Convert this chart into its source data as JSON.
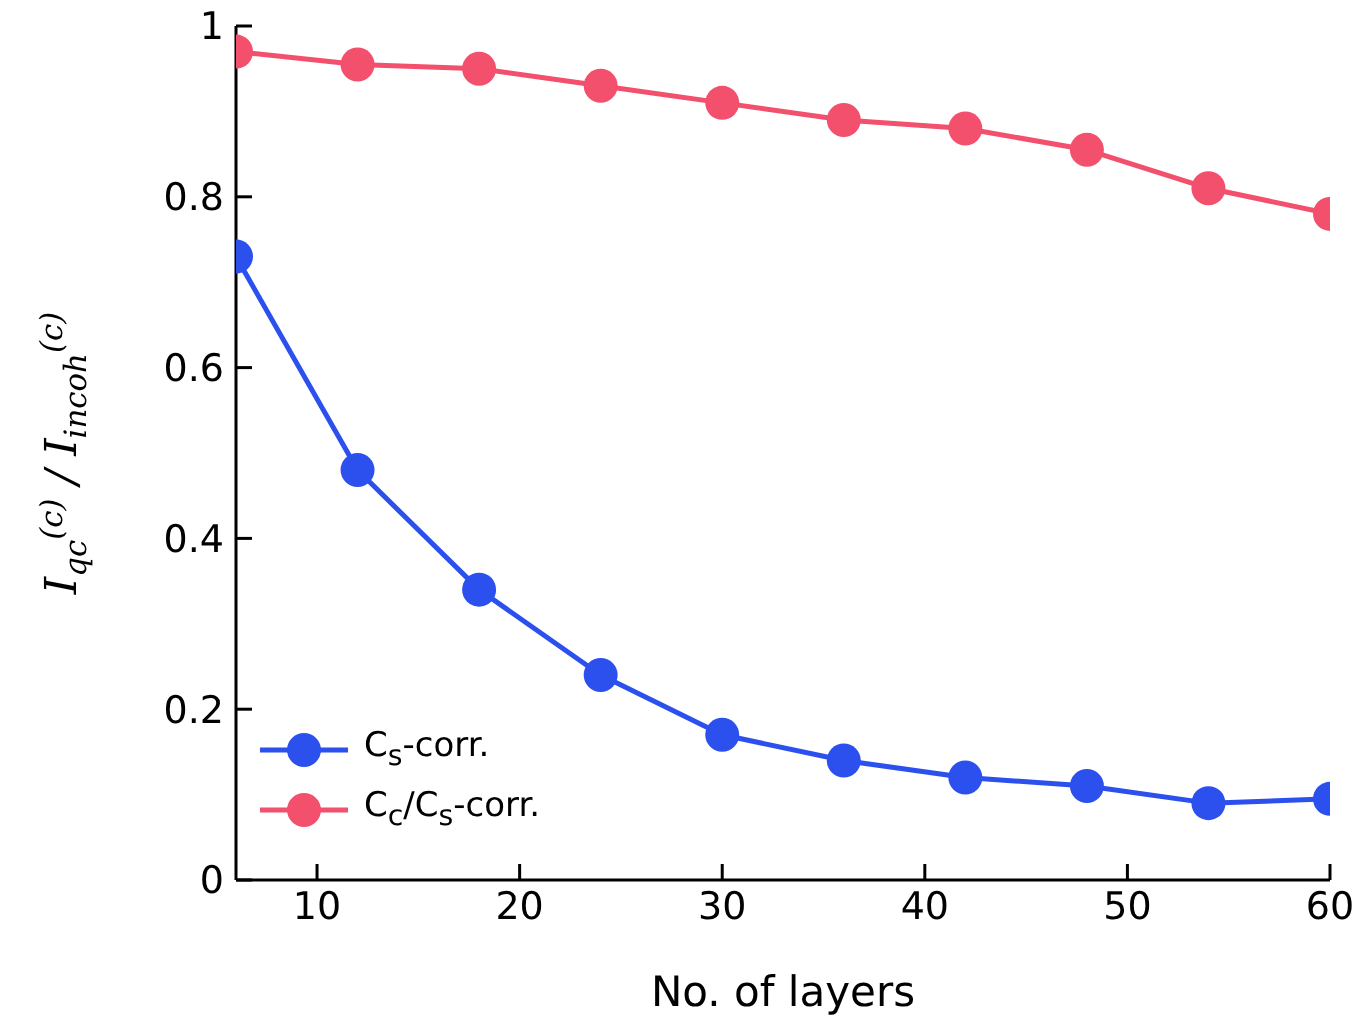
{
  "chart_data": {
    "type": "line",
    "xlabel": "No. of layers",
    "ylabel": "I$_{qc}$$^{(c)}$ / I$_{incoh}$$^{(c)}$",
    "x": [
      6,
      12,
      18,
      24,
      30,
      36,
      42,
      48,
      54,
      60
    ],
    "series": [
      {
        "name": "C$_{s}$-corr.",
        "color": "#2b50ee",
        "values": [
          0.73,
          0.48,
          0.34,
          0.24,
          0.17,
          0.14,
          0.12,
          0.11,
          0.09,
          0.095
        ]
      },
      {
        "name": "C$_{c}$/C$_{s}$-corr.",
        "color": "#f2506c",
        "values": [
          0.97,
          0.955,
          0.95,
          0.93,
          0.91,
          0.89,
          0.88,
          0.855,
          0.81,
          0.78
        ]
      }
    ],
    "xlim": [
      6,
      60
    ],
    "xticks": [
      10,
      20,
      30,
      40,
      50,
      60
    ],
    "ylim": [
      0,
      1
    ],
    "yticks": [
      0,
      0.2,
      0.4,
      0.6,
      0.8,
      1
    ],
    "grid": false,
    "legend": "bottom left",
    "marker": "circle",
    "line_style": "solid"
  }
}
